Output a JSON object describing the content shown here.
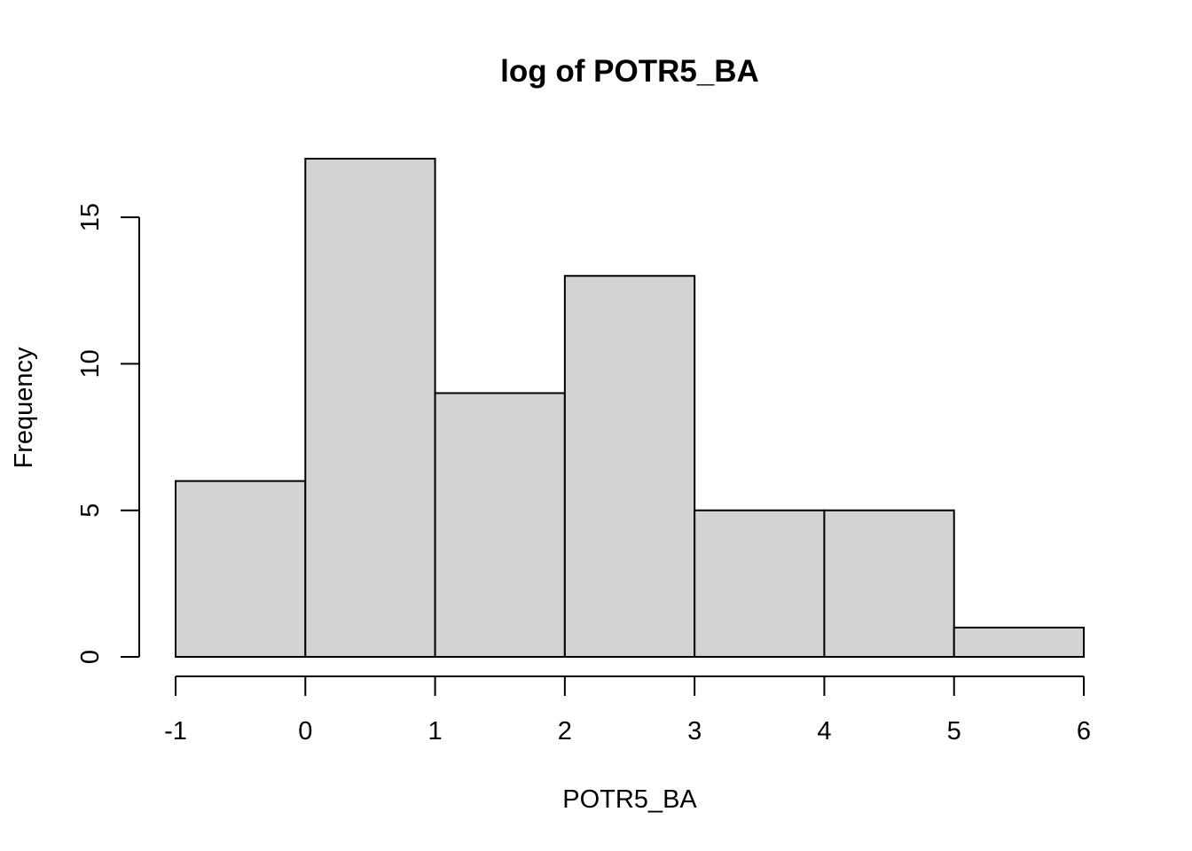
{
  "chart_data": {
    "type": "bar",
    "subtype": "histogram",
    "title": "log of POTR5_BA",
    "xlabel": "POTR5_BA",
    "ylabel": "Frequency",
    "bins": [
      {
        "start": -1,
        "end": 0,
        "count": 6
      },
      {
        "start": 0,
        "end": 1,
        "count": 17
      },
      {
        "start": 1,
        "end": 2,
        "count": 9
      },
      {
        "start": 2,
        "end": 3,
        "count": 13
      },
      {
        "start": 3,
        "end": 4,
        "count": 5
      },
      {
        "start": 4,
        "end": 5,
        "count": 5
      },
      {
        "start": 5,
        "end": 6,
        "count": 1
      }
    ],
    "x_ticks": [
      -1,
      0,
      1,
      2,
      3,
      4,
      5,
      6
    ],
    "x_tick_labels": [
      "-1",
      "0",
      "1",
      "2",
      "3",
      "4",
      "5",
      "6"
    ],
    "y_ticks": [
      0,
      5,
      10,
      15
    ],
    "y_tick_labels": [
      "0",
      "5",
      "10",
      "15"
    ],
    "xlim": [
      -1,
      6
    ],
    "ylim": [
      0,
      17
    ],
    "grid": false,
    "legend": "none",
    "colors": {
      "bar_fill": "#d3d3d3",
      "bar_stroke": "#000000",
      "axis": "#000000",
      "background": "#ffffff"
    }
  }
}
